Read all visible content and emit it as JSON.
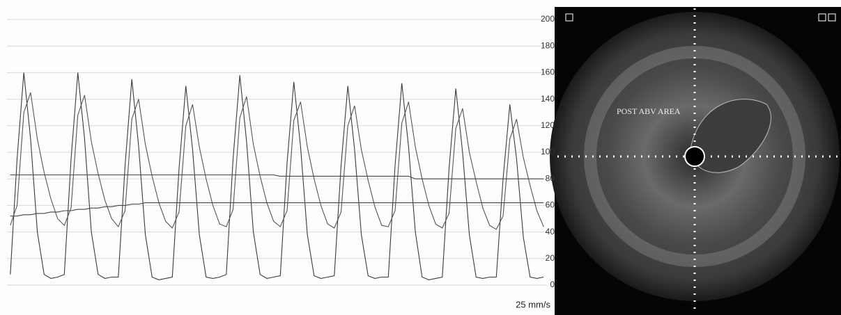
{
  "chart_data": {
    "type": "line",
    "categories": [
      null,
      null,
      null,
      null,
      null,
      null,
      null,
      null,
      null,
      null,
      null,
      null,
      null,
      null,
      null,
      null,
      null,
      null,
      null,
      null,
      null,
      null,
      null,
      null,
      null,
      null,
      null,
      null,
      null,
      null,
      null,
      null,
      null,
      null,
      null,
      null,
      null,
      null,
      null,
      null,
      null,
      null,
      null,
      null,
      null,
      null,
      null,
      null,
      null,
      null,
      null,
      null,
      null,
      null,
      null,
      null,
      null,
      null,
      null,
      null,
      null,
      null,
      null,
      null,
      null,
      null,
      null,
      null,
      null,
      null,
      null,
      null,
      null,
      null,
      null,
      null,
      null,
      null,
      null,
      null
    ],
    "series": [
      {
        "color": "#3a3a3a",
        "values": [
          8,
          95,
          160,
          110,
          40,
          8,
          5,
          6,
          8,
          95,
          160,
          110,
          40,
          8,
          5,
          6,
          6,
          90,
          155,
          105,
          38,
          6,
          4,
          5,
          6,
          88,
          150,
          102,
          38,
          6,
          5,
          6,
          8,
          95,
          158,
          108,
          40,
          8,
          5,
          6,
          7,
          92,
          153,
          104,
          38,
          7,
          5,
          6,
          7,
          90,
          150,
          102,
          38,
          7,
          5,
          6,
          6,
          90,
          152,
          104,
          40,
          6,
          4,
          5,
          6,
          88,
          148,
          100,
          38,
          6,
          5,
          6,
          6,
          80,
          136,
          95,
          36,
          6,
          5,
          6
        ]
      },
      {
        "color": "#555555",
        "values": [
          45,
          60,
          130,
          145,
          110,
          85,
          65,
          50,
          45,
          58,
          128,
          143,
          108,
          84,
          64,
          50,
          44,
          56,
          125,
          140,
          106,
          82,
          62,
          48,
          43,
          55,
          120,
          136,
          104,
          80,
          60,
          46,
          44,
          57,
          126,
          142,
          106,
          82,
          62,
          48,
          44,
          56,
          124,
          138,
          104,
          80,
          60,
          46,
          43,
          55,
          120,
          135,
          102,
          79,
          59,
          45,
          44,
          56,
          122,
          138,
          104,
          80,
          60,
          46,
          43,
          54,
          118,
          133,
          100,
          78,
          58,
          45,
          42,
          52,
          110,
          125,
          96,
          75,
          56,
          44
        ]
      },
      {
        "color": "#444444",
        "values": [
          83,
          83,
          83,
          83,
          83,
          83,
          83,
          83,
          83,
          83,
          83,
          83,
          83,
          83,
          83,
          83,
          83,
          83,
          83,
          83,
          83,
          83,
          83,
          83,
          83,
          83,
          83,
          83,
          83,
          83,
          83,
          83,
          83,
          83,
          83,
          83,
          83,
          83,
          83,
          83,
          82,
          82,
          82,
          82,
          82,
          82,
          82,
          82,
          82,
          82,
          82,
          82,
          82,
          82,
          82,
          82,
          82,
          82,
          82,
          82,
          80,
          80,
          80,
          80,
          80,
          80,
          80,
          80,
          80,
          80,
          80,
          80,
          80,
          80,
          80,
          80,
          80,
          80,
          80,
          80
        ]
      },
      {
        "color": "#444444",
        "values": [
          52,
          52,
          53,
          53,
          54,
          54,
          55,
          55,
          56,
          56,
          57,
          57,
          58,
          58,
          59,
          59,
          60,
          60,
          61,
          61,
          62,
          62,
          62,
          62,
          62,
          62,
          62,
          62,
          62,
          62,
          62,
          62,
          62,
          62,
          62,
          62,
          62,
          62,
          62,
          62,
          62,
          62,
          62,
          62,
          62,
          62,
          62,
          62,
          62,
          62,
          62,
          62,
          62,
          62,
          62,
          62,
          62,
          62,
          62,
          62,
          62,
          62,
          62,
          62,
          62,
          62,
          62,
          62,
          62,
          62,
          62,
          62,
          62,
          62,
          62,
          62,
          62,
          62,
          62,
          62
        ]
      }
    ],
    "ylim": [
      0,
      200
    ],
    "yticks": [
      0,
      20,
      40,
      60,
      80,
      100,
      120,
      140,
      160,
      180,
      200
    ],
    "grid": true,
    "annotation": "25 mm/s"
  },
  "image_panel": {
    "label": "POST ABV AREA"
  }
}
